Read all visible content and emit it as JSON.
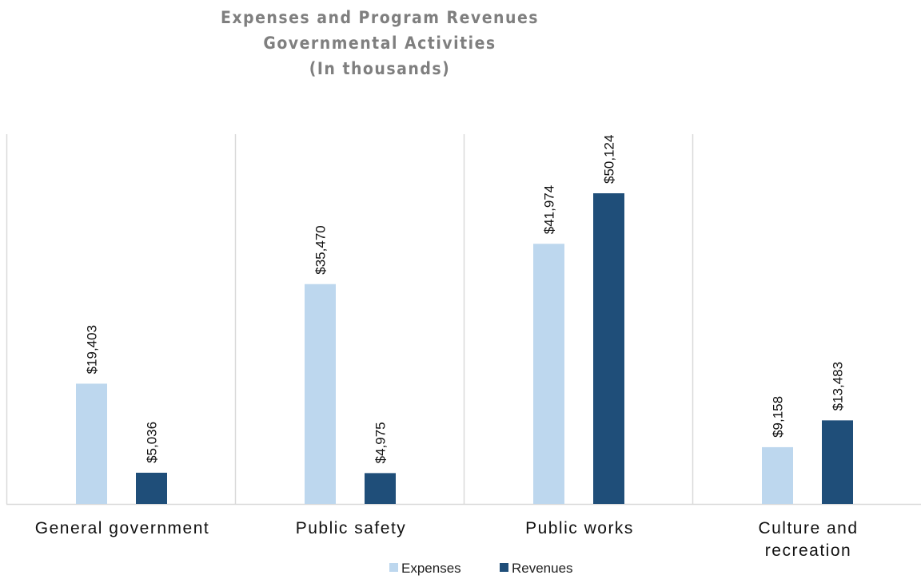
{
  "chart_data": {
    "type": "bar",
    "title": "Expenses and Program Revenues",
    "subtitle": "Governmental Activities",
    "unit_note": "(In thousands)",
    "categories": [
      [
        "General government"
      ],
      [
        "Public safety"
      ],
      [
        "Public works"
      ],
      [
        "Culture and",
        "recreation"
      ]
    ],
    "series": [
      {
        "name": "Expenses",
        "color": "#bdd7ee",
        "values": [
          19403,
          35470,
          41974,
          9158
        ],
        "labels": [
          "$19,403",
          "$35,470",
          "$41,974",
          "$9,158"
        ]
      },
      {
        "name": "Revenues",
        "color": "#1f4e79",
        "values": [
          5036,
          4975,
          50124,
          13483
        ],
        "labels": [
          "$5,036",
          "$4,975",
          "$50,124",
          "$13,483"
        ]
      }
    ],
    "ylim": [
      0,
      60000
    ],
    "grid": false,
    "legend_position": "bottom"
  }
}
